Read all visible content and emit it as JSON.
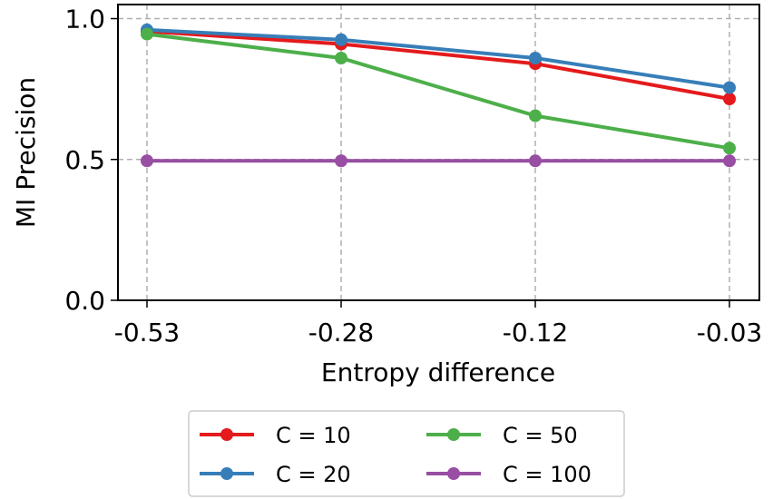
{
  "chart_data": {
    "type": "line",
    "title": "",
    "xlabel": "Entropy difference",
    "ylabel": "MI Precision",
    "categories": [
      "-0.53",
      "-0.28",
      "-0.12",
      "-0.03"
    ],
    "yticks": [
      "0.0",
      "0.5",
      "1.0"
    ],
    "ylim": [
      0.0,
      1.05
    ],
    "grid": true,
    "legend_position": "bottom-center",
    "series": [
      {
        "name": "C = 10",
        "color": "#e41a1c",
        "values": [
          0.955,
          0.91,
          0.84,
          0.715
        ]
      },
      {
        "name": "C = 20",
        "color": "#377eb8",
        "values": [
          0.96,
          0.925,
          0.86,
          0.755
        ]
      },
      {
        "name": "C = 50",
        "color": "#4daf4a",
        "values": [
          0.945,
          0.86,
          0.655,
          0.54
        ]
      },
      {
        "name": "C = 100",
        "color": "#984ea3",
        "values": [
          0.495,
          0.495,
          0.495,
          0.495
        ]
      }
    ]
  }
}
